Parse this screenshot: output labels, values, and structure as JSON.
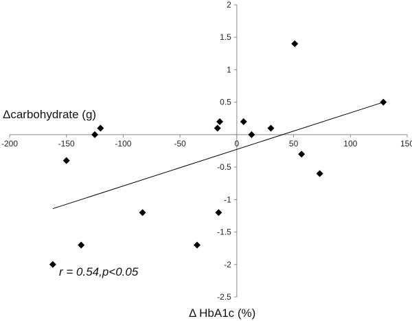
{
  "chart_data": {
    "type": "scatter",
    "xlabel": "Δ HbA1c (%)",
    "ylabel": "Δcarbohydrate (g)",
    "xlim": [
      -200,
      150
    ],
    "ylim": [
      -2.5,
      2
    ],
    "x_ticks": [
      -200,
      -150,
      -100,
      -50,
      0,
      50,
      100,
      150
    ],
    "y_ticks": [
      2,
      1.5,
      1,
      0.5,
      0,
      -0.5,
      -1,
      -1.5,
      -2,
      -2.5
    ],
    "x_tick_labels": [
      "-200",
      "-150",
      "-100",
      "-50",
      "0",
      "50",
      "100",
      "150"
    ],
    "y_tick_labels": [
      "2",
      "1.5",
      "1",
      "0.5",
      "0",
      "-0.5",
      "-1",
      "-1.5",
      "-2",
      "-2.5"
    ],
    "points": [
      {
        "x": -162,
        "y": -2.0
      },
      {
        "x": -150,
        "y": -0.4
      },
      {
        "x": -137,
        "y": -1.7
      },
      {
        "x": -125,
        "y": 0.0
      },
      {
        "x": -120,
        "y": 0.1
      },
      {
        "x": -83,
        "y": -1.2
      },
      {
        "x": -35,
        "y": -1.7
      },
      {
        "x": -17,
        "y": 0.1
      },
      {
        "x": -16,
        "y": -1.2
      },
      {
        "x": -15,
        "y": 0.2
      },
      {
        "x": 6,
        "y": 0.2
      },
      {
        "x": 13,
        "y": 0.0
      },
      {
        "x": 30,
        "y": 0.1
      },
      {
        "x": 51,
        "y": 1.4
      },
      {
        "x": 57,
        "y": -0.3
      },
      {
        "x": 73,
        "y": -0.6
      },
      {
        "x": 129,
        "y": 0.5
      }
    ],
    "trendline": {
      "x1": -162,
      "y1": -1.14,
      "x2": 129,
      "y2": 0.5
    },
    "annotation": "r = 0.54,p<0.05",
    "marker": "diamond",
    "marker_color": "#000000",
    "grid": false,
    "legend": "none"
  }
}
